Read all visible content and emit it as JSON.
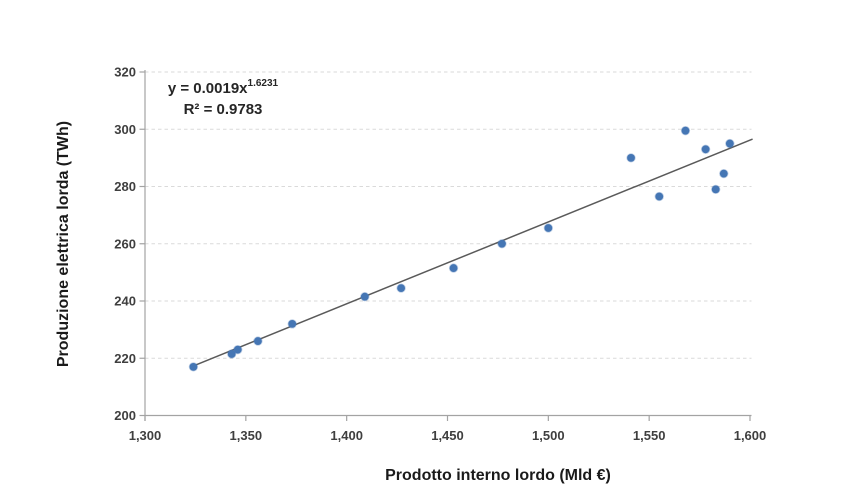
{
  "figure": {
    "background": "#ffffff"
  },
  "chart_data": {
    "type": "scatter",
    "title": "",
    "xlabel": "Prodotto interno lordo (Mld €)",
    "ylabel": "Produzione elettrica lorda (TWh)",
    "xlim": [
      1300,
      1600
    ],
    "ylim": [
      200,
      320
    ],
    "grid": {
      "horizontal": true,
      "vertical": false,
      "style": "dashed"
    },
    "legend": "none",
    "xticks": [
      {
        "value": 1300,
        "label": "1,300"
      },
      {
        "value": 1350,
        "label": "1,350"
      },
      {
        "value": 1400,
        "label": "1,400"
      },
      {
        "value": 1450,
        "label": "1,450"
      },
      {
        "value": 1500,
        "label": "1,500"
      },
      {
        "value": 1550,
        "label": "1,550"
      },
      {
        "value": 1600,
        "label": "1,600"
      }
    ],
    "yticks": [
      {
        "value": 200,
        "label": "200"
      },
      {
        "value": 220,
        "label": "220"
      },
      {
        "value": 240,
        "label": "240"
      },
      {
        "value": 260,
        "label": "260"
      },
      {
        "value": 280,
        "label": "280"
      },
      {
        "value": 300,
        "label": "300"
      },
      {
        "value": 320,
        "label": "320"
      }
    ],
    "points": [
      [
        1324,
        217
      ],
      [
        1343,
        221.5
      ],
      [
        1346,
        223
      ],
      [
        1356,
        226
      ],
      [
        1373,
        232
      ],
      [
        1409,
        241.5
      ],
      [
        1427,
        244.5
      ],
      [
        1453,
        251.5
      ],
      [
        1477,
        260
      ],
      [
        1500,
        265.5
      ],
      [
        1541,
        290
      ],
      [
        1555,
        276.5
      ],
      [
        1568,
        299.5
      ],
      [
        1578,
        293
      ],
      [
        1583,
        279
      ],
      [
        1587,
        284.5
      ],
      [
        1590,
        295
      ]
    ],
    "trendline": {
      "type": "power",
      "x1": 1324,
      "y1": 217.3,
      "x2": 1601,
      "y2": 296.5,
      "equation_base": "y = 0.0019x",
      "equation_exponent": "1.6231",
      "r_squared": "R² = 0.9783"
    },
    "colors": {
      "point_fill": "#4576b4",
      "trend_line": "#5a5a5a",
      "gridline": "#dadada",
      "axis_line": "#a3a3a3",
      "tick_text": "#3f3f3f",
      "title_text": "#1a1a1a",
      "annotation_text": "#262626"
    }
  }
}
